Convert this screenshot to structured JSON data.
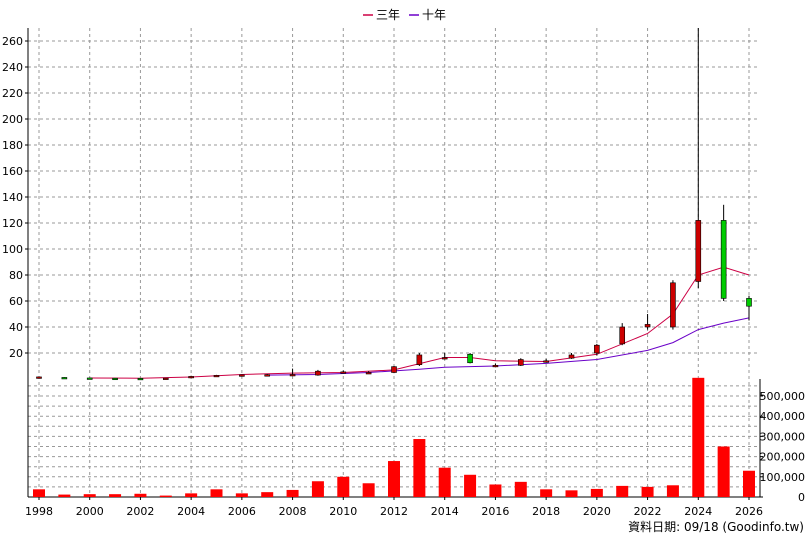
{
  "chart_data": {
    "type": "candlestick+volume",
    "legend": [
      {
        "name": "三年",
        "color": "#cc0044"
      },
      {
        "name": "十年",
        "color": "#6a00c8"
      }
    ],
    "price_axis": {
      "ticks": [
        "20",
        "40",
        "60",
        "80",
        "100",
        "120",
        "140",
        "160",
        "180",
        "200",
        "220",
        "240",
        "260"
      ],
      "ylim": [
        0,
        270
      ]
    },
    "volume_axis": {
      "ticks": [
        "0",
        "100,000",
        "200,000",
        "300,000",
        "400,000",
        "500,000"
      ],
      "ylim": [
        0,
        600000
      ]
    },
    "x_ticks": [
      "1998",
      "2000",
      "2002",
      "2004",
      "2006",
      "2008",
      "2010",
      "2012",
      "2014",
      "2016",
      "2018",
      "2020",
      "2022",
      "2024",
      "2026"
    ],
    "x_range": [
      1998,
      2026
    ],
    "candles": [
      {
        "year": 1998,
        "open": 1.5,
        "high": 1.8,
        "low": 1.2,
        "close": 1.6
      },
      {
        "year": 1999,
        "open": 1.2,
        "high": 1.4,
        "low": 0.9,
        "close": 1.1
      },
      {
        "year": 2000,
        "open": 0.8,
        "high": 1.0,
        "low": 0.6,
        "close": 0.7
      },
      {
        "year": 2001,
        "open": 0.6,
        "high": 0.8,
        "low": 0.4,
        "close": 0.5
      },
      {
        "year": 2002,
        "open": 0.5,
        "high": 0.7,
        "low": 0.3,
        "close": 0.4
      },
      {
        "year": 2003,
        "open": 0.5,
        "high": 0.8,
        "low": 0.4,
        "close": 0.7
      },
      {
        "year": 2004,
        "open": 1.5,
        "high": 2.5,
        "low": 1.2,
        "close": 2.0
      },
      {
        "year": 2005,
        "open": 2.5,
        "high": 3.2,
        "low": 2.0,
        "close": 2.8
      },
      {
        "year": 2006,
        "open": 3.0,
        "high": 3.5,
        "low": 2.5,
        "close": 3.2
      },
      {
        "year": 2007,
        "open": 3.0,
        "high": 3.8,
        "low": 2.5,
        "close": 3.3
      },
      {
        "year": 2008,
        "open": 3.0,
        "high": 8.0,
        "low": 2.5,
        "close": 3.5
      },
      {
        "year": 2009,
        "open": 3.0,
        "high": 7.0,
        "low": 2.5,
        "close": 6.0
      },
      {
        "year": 2010,
        "open": 5.5,
        "high": 6.5,
        "low": 4.5,
        "close": 5.5
      },
      {
        "year": 2011,
        "open": 5.0,
        "high": 6.0,
        "low": 4.5,
        "close": 5.0
      },
      {
        "year": 2012,
        "open": 5.0,
        "high": 10.0,
        "low": 4.5,
        "close": 9.5
      },
      {
        "year": 2013,
        "open": 11.0,
        "high": 20.0,
        "low": 10.0,
        "close": 18.5
      },
      {
        "year": 2014,
        "open": 16.0,
        "high": 20.0,
        "low": 15.0,
        "close": 16.5
      },
      {
        "year": 2015,
        "open": 19.0,
        "high": 20.0,
        "low": 12.0,
        "close": 12.5
      },
      {
        "year": 2016,
        "open": 10.0,
        "high": 12.0,
        "low": 9.0,
        "close": 10.5
      },
      {
        "year": 2017,
        "open": 10.5,
        "high": 16.0,
        "low": 10.0,
        "close": 15.0
      },
      {
        "year": 2018,
        "open": 13.5,
        "high": 15.5,
        "low": 12.5,
        "close": 14.0
      },
      {
        "year": 2019,
        "open": 16.0,
        "high": 20.0,
        "low": 15.5,
        "close": 18.5
      },
      {
        "year": 2020,
        "open": 20.0,
        "high": 27.0,
        "low": 18.0,
        "close": 26.0
      },
      {
        "year": 2021,
        "open": 27.0,
        "high": 43.0,
        "low": 26.0,
        "close": 40.0
      },
      {
        "year": 2022,
        "open": 40.0,
        "high": 50.0,
        "low": 38.0,
        "close": 42.0
      },
      {
        "year": 2023,
        "open": 40.0,
        "high": 76.0,
        "low": 38.0,
        "close": 74.0
      },
      {
        "year": 2024,
        "open": 75.0,
        "high": 270.0,
        "low": 70.0,
        "close": 122.0
      },
      {
        "year": 2025,
        "open": 122.0,
        "high": 134.0,
        "low": 60.0,
        "close": 62.0
      },
      {
        "year": 2026,
        "open": 62.0,
        "high": 64.0,
        "low": 45.0,
        "close": 56.0
      }
    ],
    "ma3": {
      "name": "三年",
      "x": [
        2000,
        2002,
        2004,
        2006,
        2008,
        2010,
        2012,
        2014,
        2015,
        2016,
        2018,
        2020,
        2022,
        2023,
        2024,
        2025,
        2026
      ],
      "y": [
        0.8,
        0.6,
        1.5,
        3.5,
        4.5,
        5.0,
        7.0,
        16.5,
        16.5,
        14.0,
        13.5,
        19.0,
        35.0,
        50.0,
        80.0,
        86.0,
        80.0
      ]
    },
    "ma10": {
      "name": "十年",
      "x": [
        2007,
        2009,
        2011,
        2013,
        2014,
        2016,
        2018,
        2020,
        2022,
        2023,
        2024,
        2025,
        2026
      ],
      "y": [
        3.0,
        3.5,
        5.0,
        7.5,
        9.0,
        10.0,
        12.0,
        15.0,
        22.0,
        28.0,
        38.0,
        43.0,
        47.0
      ]
    },
    "volumes": [
      {
        "year": 1998,
        "value": 38000
      },
      {
        "year": 1999,
        "value": 12000
      },
      {
        "year": 2000,
        "value": 14000
      },
      {
        "year": 2001,
        "value": 14000
      },
      {
        "year": 2002,
        "value": 16000
      },
      {
        "year": 2003,
        "value": 7000
      },
      {
        "year": 2004,
        "value": 18000
      },
      {
        "year": 2005,
        "value": 38000
      },
      {
        "year": 2006,
        "value": 18000
      },
      {
        "year": 2007,
        "value": 24000
      },
      {
        "year": 2008,
        "value": 35000
      },
      {
        "year": 2009,
        "value": 78000
      },
      {
        "year": 2010,
        "value": 100000
      },
      {
        "year": 2011,
        "value": 68000
      },
      {
        "year": 2012,
        "value": 178000
      },
      {
        "year": 2013,
        "value": 287000
      },
      {
        "year": 2014,
        "value": 145000
      },
      {
        "year": 2015,
        "value": 110000
      },
      {
        "year": 2016,
        "value": 62000
      },
      {
        "year": 2017,
        "value": 75000
      },
      {
        "year": 2018,
        "value": 38000
      },
      {
        "year": 2019,
        "value": 33000
      },
      {
        "year": 2020,
        "value": 40000
      },
      {
        "year": 2021,
        "value": 55000
      },
      {
        "year": 2022,
        "value": 50000
      },
      {
        "year": 2023,
        "value": 58000
      },
      {
        "year": 2024,
        "value": 590000
      },
      {
        "year": 2025,
        "value": 250000
      },
      {
        "year": 2026,
        "value": 130000
      }
    ],
    "colors": {
      "up": "#cc0000",
      "down": "#00cc00",
      "volume": "#ff0000",
      "grid": "#999999",
      "axis": "#000000"
    }
  },
  "footer": "資料日期: 09/18  (Goodinfo.tw)"
}
